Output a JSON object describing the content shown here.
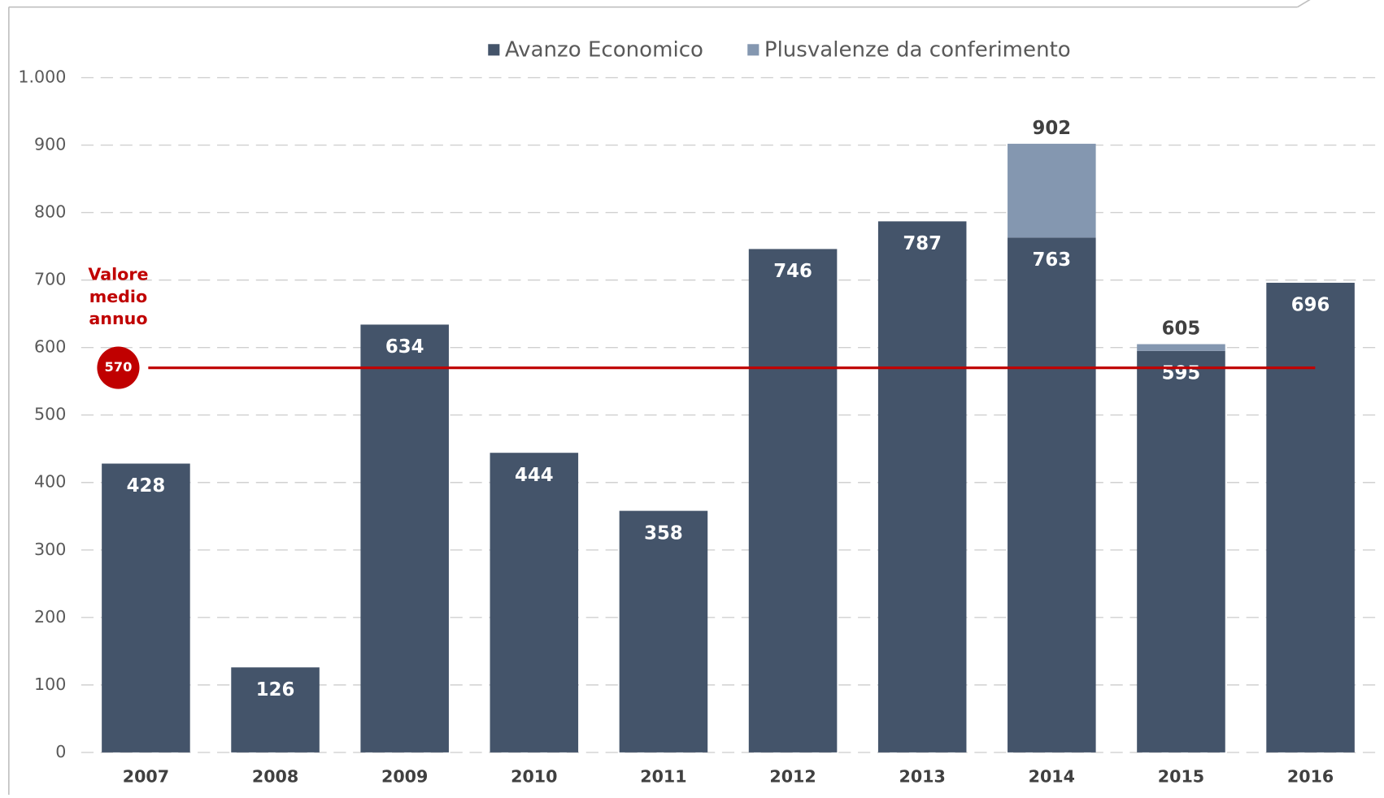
{
  "chart_data": {
    "type": "stacked_bar",
    "categories": [
      "2007",
      "2008",
      "2009",
      "2010",
      "2011",
      "2012",
      "2013",
      "2014",
      "2015",
      "2016"
    ],
    "series": [
      {
        "name": "Avanzo Economico",
        "color": "#44546a",
        "values": [
          428,
          126,
          634,
          444,
          358,
          746,
          787,
          763,
          595,
          696
        ]
      },
      {
        "name": "Plusvalenze da conferimento",
        "color": "#8497b0",
        "values": [
          null,
          null,
          null,
          null,
          null,
          null,
          null,
          139,
          10,
          null
        ]
      }
    ],
    "total_labels": [
      null,
      null,
      null,
      null,
      null,
      null,
      null,
      902,
      605,
      null
    ],
    "ylim": [
      0,
      1000
    ],
    "yticks": [
      0,
      100,
      200,
      300,
      400,
      500,
      600,
      700,
      800,
      900,
      {
        "value": 1000,
        "label": "1.000"
      }
    ],
    "grid": true,
    "legend": "top",
    "average": {
      "label": "Valore medio annuo",
      "value": 570,
      "color": "#c00000"
    }
  }
}
